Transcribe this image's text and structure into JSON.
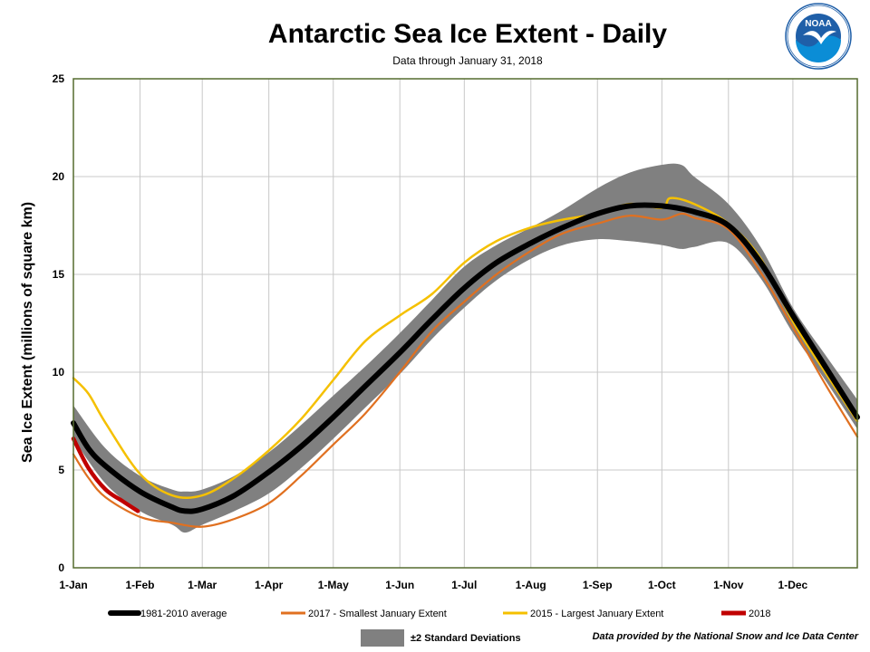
{
  "chart_data": {
    "type": "line",
    "title": "Antarctic Sea Ice Extent - Daily",
    "subtitle": "Data through January 31, 2018",
    "ylabel": "Sea Ice Extent (millions of square km)",
    "xlabel": "",
    "ylim": [
      0,
      25
    ],
    "yticks": [
      0,
      5,
      10,
      15,
      20,
      25
    ],
    "xlim": [
      "2000-01-01",
      "2000-12-31"
    ],
    "xtick_labels": [
      "1-Jan",
      "1-Feb",
      "1-Mar",
      "1-Apr",
      "1-May",
      "1-Jun",
      "1-Jul",
      "1-Aug",
      "1-Sep",
      "1-Oct",
      "1-Nov",
      "1-Dec"
    ],
    "xtick_dates": [
      "2000-01-01",
      "2000-02-01",
      "2000-03-01",
      "2000-04-01",
      "2000-05-01",
      "2000-06-01",
      "2000-07-01",
      "2000-08-01",
      "2000-09-01",
      "2000-10-01",
      "2000-11-01",
      "2000-12-01"
    ],
    "grid": true,
    "legend_position": "bottom",
    "band": {
      "name": "±2 Standard Deviations",
      "color": "#808080",
      "x": [
        "2000-01-01",
        "2000-01-16",
        "2000-02-01",
        "2000-02-16",
        "2000-02-22",
        "2000-03-01",
        "2000-03-16",
        "2000-04-01",
        "2000-04-16",
        "2000-05-01",
        "2000-05-16",
        "2000-06-01",
        "2000-06-16",
        "2000-07-01",
        "2000-07-16",
        "2000-08-01",
        "2000-08-16",
        "2000-09-01",
        "2000-09-16",
        "2000-10-01",
        "2000-10-10",
        "2000-10-16",
        "2000-11-01",
        "2000-11-16",
        "2000-12-01",
        "2000-12-16",
        "2000-12-31"
      ],
      "upper": [
        8.3,
        6.1,
        4.7,
        4.0,
        3.9,
        4.0,
        4.7,
        5.9,
        7.3,
        8.8,
        10.3,
        12.0,
        13.7,
        15.4,
        16.5,
        17.4,
        18.3,
        19.4,
        20.2,
        20.6,
        20.6,
        20.0,
        18.6,
        16.4,
        13.3,
        10.9,
        8.6
      ],
      "lower": [
        6.6,
        4.3,
        2.9,
        2.2,
        1.8,
        2.2,
        2.9,
        3.8,
        5.1,
        6.6,
        8.2,
        9.9,
        11.7,
        13.3,
        14.7,
        15.8,
        16.5,
        16.8,
        16.7,
        16.5,
        16.3,
        16.4,
        16.6,
        14.8,
        12.0,
        9.6,
        7.1
      ]
    },
    "series": [
      {
        "name": "1981-2010 average",
        "color": "#000000",
        "x": [
          "2000-01-01",
          "2000-01-08",
          "2000-01-16",
          "2000-02-01",
          "2000-02-16",
          "2000-02-22",
          "2000-03-01",
          "2000-03-16",
          "2000-04-01",
          "2000-04-16",
          "2000-05-01",
          "2000-05-16",
          "2000-06-01",
          "2000-06-16",
          "2000-07-01",
          "2000-07-16",
          "2000-08-01",
          "2000-08-16",
          "2000-09-01",
          "2000-09-16",
          "2000-10-01",
          "2000-10-16",
          "2000-11-01",
          "2000-11-16",
          "2000-12-01",
          "2000-12-16",
          "2000-12-31"
        ],
        "values": [
          7.4,
          6.1,
          5.2,
          3.9,
          3.1,
          2.9,
          3.0,
          3.7,
          4.9,
          6.2,
          7.7,
          9.3,
          11.0,
          12.7,
          14.3,
          15.6,
          16.6,
          17.4,
          18.1,
          18.5,
          18.5,
          18.2,
          17.5,
          15.6,
          12.9,
          10.3,
          7.7
        ]
      },
      {
        "name": "2017 - Smallest January Extent",
        "color": "#e07020",
        "x": [
          "2000-01-01",
          "2000-01-08",
          "2000-01-16",
          "2000-02-01",
          "2000-02-16",
          "2000-03-01",
          "2000-03-16",
          "2000-04-01",
          "2000-04-16",
          "2000-05-01",
          "2000-05-16",
          "2000-06-01",
          "2000-06-16",
          "2000-07-01",
          "2000-07-16",
          "2000-08-01",
          "2000-08-16",
          "2000-09-01",
          "2000-09-16",
          "2000-10-01",
          "2000-10-10",
          "2000-10-16",
          "2000-11-01",
          "2000-11-16",
          "2000-12-01",
          "2000-12-16",
          "2000-12-31"
        ],
        "values": [
          5.8,
          4.6,
          3.6,
          2.6,
          2.3,
          2.1,
          2.5,
          3.3,
          4.7,
          6.3,
          7.9,
          10.0,
          12.1,
          13.6,
          15.0,
          16.2,
          17.1,
          17.6,
          18.0,
          17.8,
          18.1,
          17.9,
          17.3,
          15.1,
          12.3,
          9.4,
          6.7
        ]
      },
      {
        "name": "2015 - Largest January Extent",
        "color": "#f5c000",
        "x": [
          "2000-01-01",
          "2000-01-08",
          "2000-01-16",
          "2000-02-01",
          "2000-02-16",
          "2000-03-01",
          "2000-03-16",
          "2000-04-01",
          "2000-04-16",
          "2000-05-01",
          "2000-05-16",
          "2000-06-01",
          "2000-06-16",
          "2000-07-01",
          "2000-07-16",
          "2000-08-01",
          "2000-08-16",
          "2000-09-01",
          "2000-09-16",
          "2000-10-01",
          "2000-10-05",
          "2000-10-16",
          "2000-11-01",
          "2000-11-16",
          "2000-12-01",
          "2000-12-16",
          "2000-12-31"
        ],
        "values": [
          9.7,
          8.9,
          7.4,
          4.8,
          3.7,
          3.7,
          4.6,
          6.0,
          7.6,
          9.6,
          11.6,
          12.9,
          14.0,
          15.6,
          16.7,
          17.4,
          17.8,
          18.1,
          18.6,
          18.4,
          18.9,
          18.6,
          17.6,
          15.8,
          12.6,
          10.0,
          7.5
        ]
      },
      {
        "name": "2018",
        "color": "#c00000",
        "x": [
          "2000-01-01",
          "2000-01-08",
          "2000-01-16",
          "2000-01-24",
          "2000-01-31"
        ],
        "values": [
          6.6,
          5.1,
          4.0,
          3.4,
          2.9
        ]
      }
    ]
  },
  "legend": {
    "average": "1981-2010 average",
    "smallest": "2017 - Smallest January Extent",
    "largest": "2015 - Largest January Extent",
    "current": "2018",
    "band": "±2 Standard Deviations"
  },
  "credit": "Data provided  by the National Snow and Ice Data Center",
  "logo": {
    "name": "noaa-logo",
    "text": "NOAA",
    "ring_text": "NATIONAL OCEANIC AND ATMOSPHERIC ADMINISTRATION · U.S. DEPARTMENT OF COMMERCE",
    "colors": {
      "ring": "#ffffff",
      "sky": "#1f5fa8",
      "sea": "#0b8dd6",
      "gull": "#ffffff"
    }
  },
  "style": {
    "plot_background": "#ffffff",
    "plot_border": "#556b2f",
    "grid_color": "#c8c8c8"
  }
}
